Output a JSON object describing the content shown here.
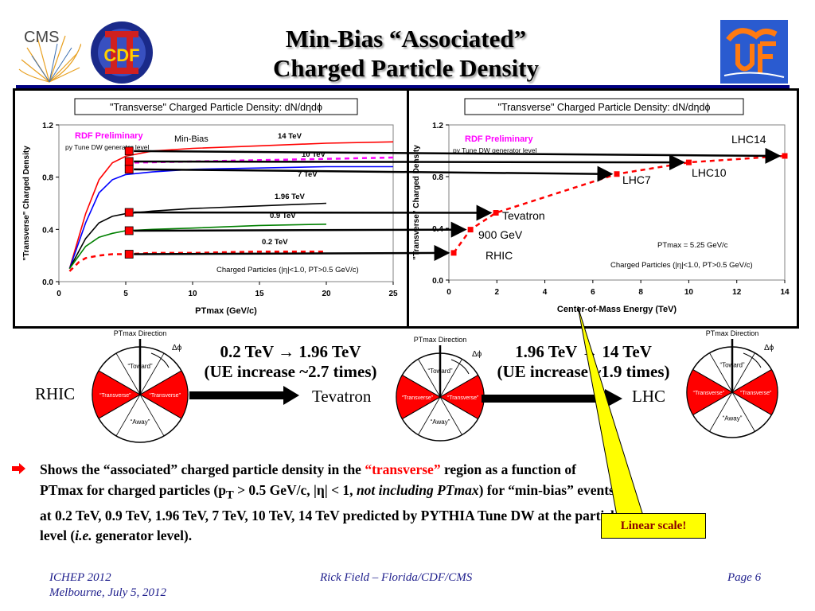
{
  "slide": {
    "title_line1": "Min-Bias “Associated”",
    "title_line2": "Charged Particle Density",
    "logo_left_text": "CMS",
    "logo_cdf_text": "CDF"
  },
  "colors": {
    "red": "#ff0000",
    "blue": "#0000ff",
    "green": "#008000",
    "magenta": "#ff00ff",
    "navy": "#000080"
  },
  "chart_data": [
    {
      "type": "line",
      "title": "\"Transverse\" Charged Particle Density: dN/dηdϕ",
      "xlabel": "PTmax (GeV/c)",
      "ylabel": "\"Transverse\" Charged Density",
      "xlim": [
        0,
        25
      ],
      "ylim": [
        0,
        1.2
      ],
      "xticks": [
        "0",
        "5",
        "10",
        "15",
        "20",
        "25"
      ],
      "yticks": [
        "0.0",
        "0.4",
        "0.8",
        "1.2"
      ],
      "annotations": {
        "preliminary": "RDF Preliminary",
        "generator": "py Tune DW generator level",
        "minbias": "Min-Bias",
        "cuts": "Charged Particles (|η|<1.0, PT>0.5 GeV/c)"
      },
      "series": [
        {
          "name": "14 TeV",
          "color": "#ff0000",
          "dash": false,
          "x": [
            0.8,
            2,
            3,
            4,
            5,
            7,
            10,
            15,
            20,
            25
          ],
          "y": [
            0.1,
            0.52,
            0.78,
            0.91,
            0.96,
            1.0,
            1.02,
            1.04,
            1.06,
            1.07
          ]
        },
        {
          "name": "10 TeV",
          "color": "#ff00ff",
          "dash": true,
          "x": [
            5,
            10,
            15,
            20,
            25
          ],
          "y": [
            0.91,
            0.92,
            0.93,
            0.94,
            0.95
          ]
        },
        {
          "name": "7 TeV",
          "color": "#0000ff",
          "dash": false,
          "x": [
            0.8,
            2,
            3,
            4,
            5,
            7,
            10,
            15,
            20,
            25
          ],
          "y": [
            0.1,
            0.45,
            0.68,
            0.78,
            0.82,
            0.84,
            0.86,
            0.87,
            0.88,
            0.88
          ]
        },
        {
          "name": "1.96 TeV",
          "color": "#000000",
          "dash": false,
          "x": [
            0.8,
            2,
            3,
            4,
            5,
            7,
            10,
            15,
            20
          ],
          "y": [
            0.1,
            0.33,
            0.45,
            0.5,
            0.52,
            0.54,
            0.56,
            0.58,
            0.6
          ]
        },
        {
          "name": "0.9 TeV",
          "color": "#008000",
          "dash": false,
          "x": [
            0.8,
            2,
            3,
            4,
            5,
            7,
            10,
            15,
            20
          ],
          "y": [
            0.1,
            0.27,
            0.34,
            0.37,
            0.39,
            0.4,
            0.41,
            0.43,
            0.44
          ]
        },
        {
          "name": "0.2 TeV",
          "color": "#ff0000",
          "dash": true,
          "x": [
            0.8,
            1.5,
            2,
            3,
            4,
            5,
            7,
            10,
            15,
            20
          ],
          "y": [
            0.08,
            0.15,
            0.18,
            0.2,
            0.21,
            0.21,
            0.22,
            0.22,
            0.23,
            0.23
          ]
        }
      ]
    },
    {
      "type": "line",
      "title": "\"Transverse\" Charged Particle Density: dN/dηdϕ",
      "xlabel": "Center-of-Mass Energy (TeV)",
      "ylabel": "\"Transverse\" Charged Density",
      "xlim": [
        0,
        14
      ],
      "ylim": [
        0,
        1.2
      ],
      "xticks": [
        "0",
        "2",
        "4",
        "6",
        "8",
        "10",
        "12",
        "14"
      ],
      "yticks": [
        "0.0",
        "0.4",
        "0.8",
        "1.2"
      ],
      "annotations": {
        "preliminary": "RDF Preliminary",
        "generator": "py Tune DW generator level",
        "ptmax": "PTmax = 5.25 GeV/c",
        "cuts": "Charged Particles (|η|<1.0, PT>0.5 GeV/c)"
      },
      "series": [
        {
          "name": "",
          "color": "#ff0000",
          "dash": true,
          "x": [
            0.2,
            0.9,
            1.96,
            7,
            10,
            14
          ],
          "y": [
            0.21,
            0.39,
            0.52,
            0.82,
            0.91,
            0.96
          ]
        }
      ],
      "point_labels": [
        "RHIC",
        "900 GeV",
        "Tevatron",
        "LHC7",
        "LHC10",
        "LHC14"
      ]
    }
  ],
  "diagram": {
    "ptmax_direction": "PTmax Direction",
    "delta_phi": "Δϕ",
    "toward": "“Toward”",
    "transverse": "“Transverse”",
    "away": "“Away”",
    "rhic_label": "RHIC",
    "tevatron_label": "Tevatron",
    "lhc_label": "LHC",
    "step1_line1": "0.2 TeV → 1.96 TeV",
    "step1_line2": "(UE increase ~2.7 times)",
    "step2_line1": "1.96 TeV → 14 TeV",
    "step2_line2": "(UE increase ~1.9 times)"
  },
  "bullet": {
    "part1": "Shows the “associated” charged particle density in the ",
    "highlight": "“transverse”",
    "part2": " region as a function of",
    "line2a": "PTmax for charged particles (p",
    "line2sub": "T",
    "line2b": " > 0.5 GeV/c, |η| < 1, ",
    "line2it": "not including PTmax",
    "line2c": ") for “min-bias” events",
    "line3": "at 0.2 TeV, 0.9 TeV, 1.96 TeV, 7 TeV, 10 TeV, 14 TeV predicted by PYTHIA Tune DW at the particle",
    "line4a": "level (",
    "line4it": "i.e.",
    "line4b": " generator level)."
  },
  "callout": "Linear scale!",
  "footer": {
    "left1": "ICHEP 2012",
    "left2": "Melbourne, July 5, 2012",
    "center": "Rick Field – Florida/CDF/CMS",
    "right": "Page 6"
  }
}
